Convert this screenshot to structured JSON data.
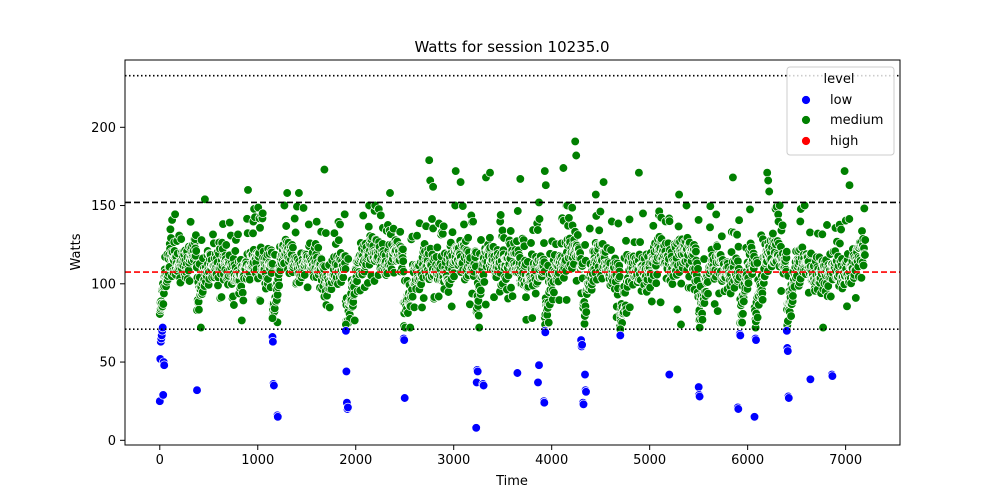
{
  "chart_data": {
    "type": "scatter",
    "title": "Watts for session 10235.0",
    "xlabel": "Time",
    "ylabel": "Watts",
    "xlim": [
      -355,
      7555
    ],
    "ylim": [
      -3,
      243
    ],
    "x_ticks": [
      0,
      1000,
      2000,
      3000,
      4000,
      5000,
      6000,
      7000
    ],
    "y_ticks": [
      0,
      50,
      100,
      150,
      200
    ],
    "grid": false,
    "legend": {
      "title": "level",
      "placement": "upper right",
      "entries": [
        {
          "label": "low",
          "color": "#0000ff"
        },
        {
          "label": "medium",
          "color": "#008000"
        },
        {
          "label": "high",
          "color": "#ff0000"
        }
      ]
    },
    "reference_lines": [
      {
        "y": 233,
        "style": "dotted",
        "color": "#000000"
      },
      {
        "y": 152,
        "style": "dashed",
        "color": "#000000"
      },
      {
        "y": 107.5,
        "style": "dashed",
        "color": "#ff0000"
      },
      {
        "y": 71,
        "style": "dotted",
        "color": "#000000"
      }
    ],
    "series": [
      {
        "name": "low",
        "color": "#0000ff",
        "points": [
          [
            0,
            25
          ],
          [
            5,
            52
          ],
          [
            10,
            63
          ],
          [
            15,
            65
          ],
          [
            20,
            67
          ],
          [
            25,
            70
          ],
          [
            30,
            72
          ],
          [
            35,
            29
          ],
          [
            40,
            50
          ],
          [
            45,
            48
          ],
          [
            380,
            32
          ],
          [
            1150,
            66
          ],
          [
            1155,
            63
          ],
          [
            1160,
            36
          ],
          [
            1165,
            35
          ],
          [
            1200,
            16
          ],
          [
            1205,
            15
          ],
          [
            1900,
            70
          ],
          [
            1905,
            44
          ],
          [
            1910,
            24
          ],
          [
            1915,
            20
          ],
          [
            1920,
            21
          ],
          [
            2490,
            65
          ],
          [
            2495,
            64
          ],
          [
            2500,
            27
          ],
          [
            3230,
            8
          ],
          [
            3235,
            37
          ],
          [
            3240,
            45
          ],
          [
            3245,
            44
          ],
          [
            3300,
            36
          ],
          [
            3305,
            35
          ],
          [
            3650,
            43
          ],
          [
            3860,
            37
          ],
          [
            3870,
            48
          ],
          [
            3920,
            25
          ],
          [
            3925,
            24
          ],
          [
            3930,
            70
          ],
          [
            3935,
            69
          ],
          [
            4300,
            64
          ],
          [
            4305,
            60
          ],
          [
            4310,
            61
          ],
          [
            4320,
            24
          ],
          [
            4325,
            23
          ],
          [
            4340,
            42
          ],
          [
            4345,
            32
          ],
          [
            4350,
            31
          ],
          [
            4700,
            67
          ],
          [
            5200,
            42
          ],
          [
            5500,
            34
          ],
          [
            5505,
            29
          ],
          [
            5510,
            28
          ],
          [
            5900,
            21
          ],
          [
            5905,
            20
          ],
          [
            5920,
            68
          ],
          [
            5925,
            67
          ],
          [
            6070,
            15
          ],
          [
            6080,
            65
          ],
          [
            6085,
            64
          ],
          [
            6400,
            70
          ],
          [
            6405,
            59
          ],
          [
            6410,
            57
          ],
          [
            6415,
            28
          ],
          [
            6420,
            27
          ],
          [
            6640,
            39
          ],
          [
            6860,
            42
          ],
          [
            6865,
            41
          ]
        ]
      },
      {
        "name": "medium",
        "color": "#008000",
        "points": [
          [
            460,
            154
          ],
          [
            900,
            160
          ],
          [
            1300,
            158
          ],
          [
            1420,
            158
          ],
          [
            1680,
            173
          ],
          [
            2350,
            158
          ],
          [
            2750,
            179
          ],
          [
            2760,
            166
          ],
          [
            2790,
            162
          ],
          [
            3020,
            172
          ],
          [
            3070,
            165
          ],
          [
            3330,
            168
          ],
          [
            3370,
            171
          ],
          [
            3680,
            167
          ],
          [
            3870,
            152
          ],
          [
            3930,
            172
          ],
          [
            3940,
            163
          ],
          [
            4120,
            174
          ],
          [
            4240,
            191
          ],
          [
            4250,
            182
          ],
          [
            4450,
            157
          ],
          [
            4530,
            165
          ],
          [
            4890,
            171
          ],
          [
            5300,
            157
          ],
          [
            5850,
            168
          ],
          [
            6200,
            171
          ],
          [
            6210,
            166
          ],
          [
            6220,
            159
          ],
          [
            6990,
            172
          ],
          [
            7040,
            163
          ],
          [
            1900,
            74
          ],
          [
            3260,
            72
          ],
          [
            1150,
            78
          ],
          [
            4700,
            71
          ],
          [
            420,
            72
          ],
          [
            6770,
            72
          ],
          [
            5320,
            74
          ]
        ]
      },
      {
        "name": "high",
        "color": "#ff0000",
        "points": []
      }
    ],
    "medium_band_description": "dense medium-level samples continuously spanning time 0 to 7200 with watts mostly between 75 and 150, centered near 110"
  }
}
